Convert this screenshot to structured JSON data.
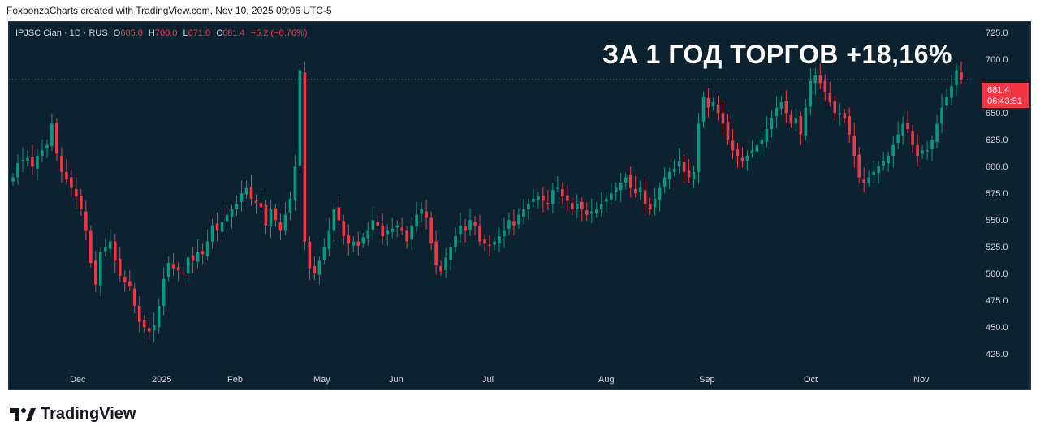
{
  "credit": "FoxbonzaCharts created with TradingView.com, Nov 10, 2025 09:06 UTC-5",
  "legend": {
    "symbol": "IPJSC Cian · 1D · RUS",
    "open_label": "O",
    "open": "685.0",
    "high_label": "H",
    "high": "700.0",
    "low_label": "L",
    "low": "671.0",
    "close_label": "C",
    "close": "681.4",
    "change": "−5.2 (−0.76%)"
  },
  "headline": "ЗА 1 ГОД ТОРГОВ +18,16%",
  "price_tag": {
    "price": "681.4",
    "countdown": "06:43:51"
  },
  "brand": {
    "name": "TradingView"
  },
  "colors": {
    "up": "#089981",
    "down": "#f23645",
    "background": "#0d2231",
    "text": "#d1d4dc"
  },
  "chart_data": {
    "type": "candlestick",
    "ylim": [
      410,
      735
    ],
    "y_ticks": [
      425.0,
      450.0,
      475.0,
      500.0,
      525.0,
      550.0,
      575.0,
      600.0,
      625.0,
      650.0,
      675.0,
      700.0,
      725.0
    ],
    "x_labels": [
      "Dec",
      "2025",
      "Feb",
      "May",
      "Jun",
      "Jul",
      "Aug",
      "Sep",
      "Oct",
      "Nov"
    ],
    "last_price": 681.4,
    "close_series": [
      590,
      603,
      606,
      608,
      600,
      610,
      615,
      620,
      640,
      612,
      595,
      588,
      580,
      572,
      560,
      540,
      510,
      490,
      520,
      525,
      530,
      512,
      498,
      492,
      488,
      470,
      455,
      450,
      446,
      452,
      470,
      495,
      510,
      505,
      503,
      500,
      515,
      512,
      520,
      518,
      530,
      545,
      540,
      548,
      555,
      560,
      565,
      575,
      580,
      570,
      566,
      562,
      545,
      560,
      550,
      540,
      555,
      570,
      600,
      690,
      530,
      505,
      500,
      512,
      525,
      540,
      560,
      550,
      535,
      528,
      530,
      526,
      534,
      540,
      550,
      545,
      535,
      540,
      542,
      545,
      540,
      530,
      545,
      555,
      560,
      552,
      528,
      508,
      502,
      515,
      525,
      535,
      545,
      540,
      550,
      545,
      530,
      528,
      526,
      530,
      535,
      540,
      550,
      545,
      555,
      560,
      565,
      570,
      572,
      568,
      565,
      578,
      580,
      572,
      568,
      560,
      565,
      560,
      555,
      558,
      560,
      565,
      570,
      575,
      580,
      585,
      590,
      580,
      575,
      580,
      565,
      560,
      570,
      580,
      590,
      595,
      598,
      605,
      595,
      590,
      595,
      640,
      665,
      655,
      660,
      650,
      640,
      625,
      615,
      610,
      605,
      610,
      615,
      620,
      625,
      635,
      645,
      655,
      660,
      650,
      640,
      645,
      630,
      655,
      680,
      685,
      678,
      670,
      660,
      650,
      650,
      645,
      630,
      610,
      590,
      585,
      590,
      595,
      600,
      605,
      610,
      620,
      630,
      640,
      635,
      620,
      610,
      615,
      615,
      625,
      640,
      655,
      665,
      675,
      690,
      681.4
    ]
  }
}
